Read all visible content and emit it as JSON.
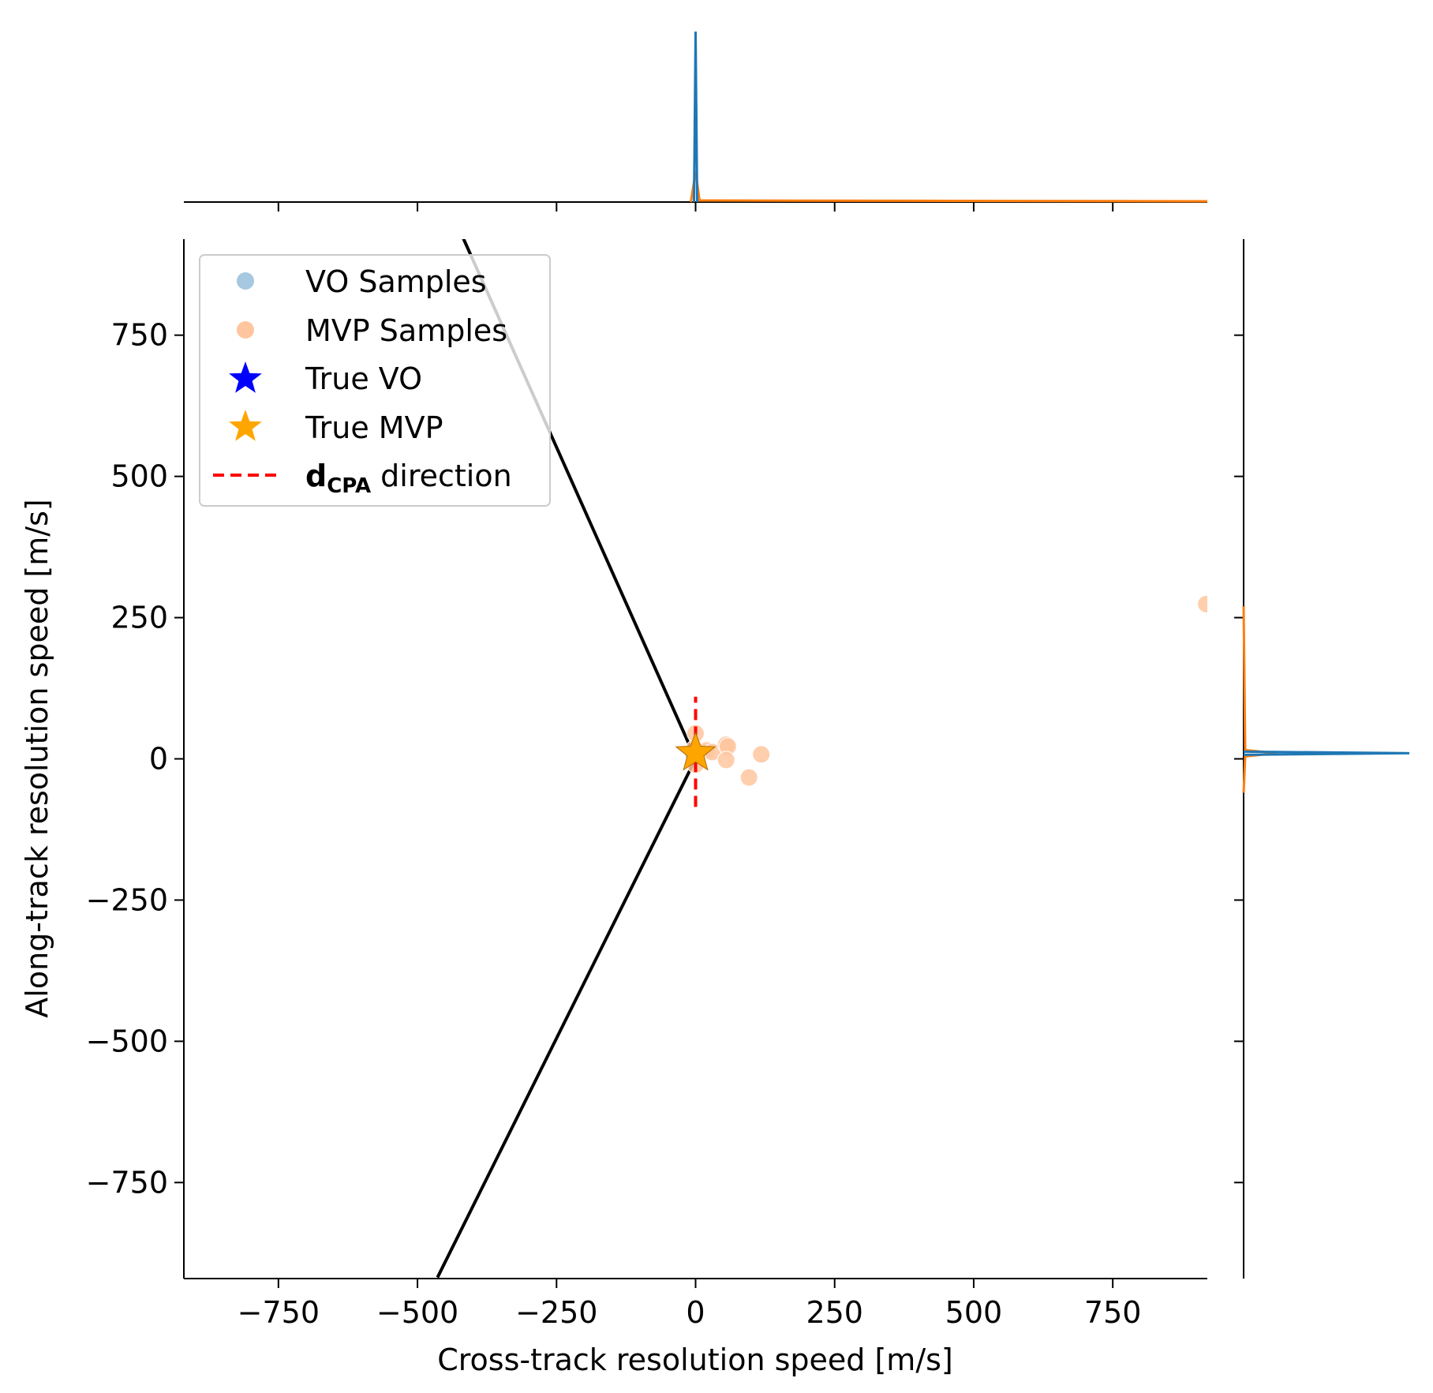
{
  "chart_data": {
    "type": "scatter",
    "xlabel": "Cross-track resolution speed [m/s]",
    "ylabel": "Along-track resolution speed [m/s]",
    "xlim": [
      -920,
      920
    ],
    "ylim": [
      -920,
      920
    ],
    "xticks": [
      -750,
      -500,
      -250,
      0,
      250,
      500,
      750
    ],
    "yticks": [
      -750,
      -500,
      -250,
      0,
      250,
      500,
      750
    ],
    "xtick_labels": [
      "−750",
      "−500",
      "−250",
      "0",
      "250",
      "500",
      "750"
    ],
    "ytick_labels": [
      "−750",
      "−500",
      "−250",
      "0",
      "250",
      "500",
      "750"
    ],
    "grid": false,
    "legend_position": "upper-left",
    "legend": [
      {
        "key": "vo_samples",
        "label": "VO Samples",
        "marker": "circle",
        "color": "#a6c8e0"
      },
      {
        "key": "mvp_samples",
        "label": "MVP Samples",
        "marker": "circle",
        "color": "#ffc59e"
      },
      {
        "key": "true_vo",
        "label": "True VO",
        "marker": "star",
        "color": "#0000ff"
      },
      {
        "key": "true_mvp",
        "label": "True MVP",
        "marker": "star",
        "color": "#ffa500"
      },
      {
        "key": "dcpa",
        "label_main": "d",
        "label_sub": "CPA",
        "label_rest": " direction",
        "marker": "dashed-line",
        "color": "#ff0000"
      }
    ],
    "series": [
      {
        "name": "VO Samples",
        "color": "#a6c8e0",
        "points": [
          [
            0,
            10
          ],
          [
            5,
            12
          ],
          [
            -3,
            8
          ],
          [
            2,
            9
          ]
        ]
      },
      {
        "name": "MVP Samples",
        "color": "#ffc59e",
        "points": [
          [
            0,
            45
          ],
          [
            -2,
            18
          ],
          [
            0,
            -10
          ],
          [
            20,
            15
          ],
          [
            30,
            12
          ],
          [
            55,
            25
          ],
          [
            58,
            22
          ],
          [
            55,
            -2
          ],
          [
            118,
            8
          ],
          [
            96,
            -33
          ],
          [
            918,
            274
          ]
        ]
      }
    ],
    "true_vo": [
      0,
      10
    ],
    "true_mvp": [
      0,
      10
    ],
    "dcpa_line": {
      "x": 0,
      "y_from": -85,
      "y_to": 110,
      "color": "#ff0000"
    },
    "vo_boundary": {
      "color": "#000000",
      "lines": [
        {
          "from": [
            0,
            0
          ],
          "to": [
            -431,
            951
          ]
        },
        {
          "from": [
            0,
            0
          ],
          "to": [
            -464,
            -918
          ]
        }
      ]
    },
    "top_marginal": {
      "colors": [
        "#1f77b4",
        "#ff7f0e"
      ],
      "peak_x": 0,
      "description_values": {
        "blue_peak_rel": 1.0,
        "orange_peak_rel": 0.18
      }
    },
    "right_marginal": {
      "colors": [
        "#1f77b4",
        "#ff7f0e"
      ],
      "peak_y": 10,
      "description_values": {
        "blue_peak_rel": 1.0,
        "orange_peak_rel": 0.2
      }
    }
  }
}
